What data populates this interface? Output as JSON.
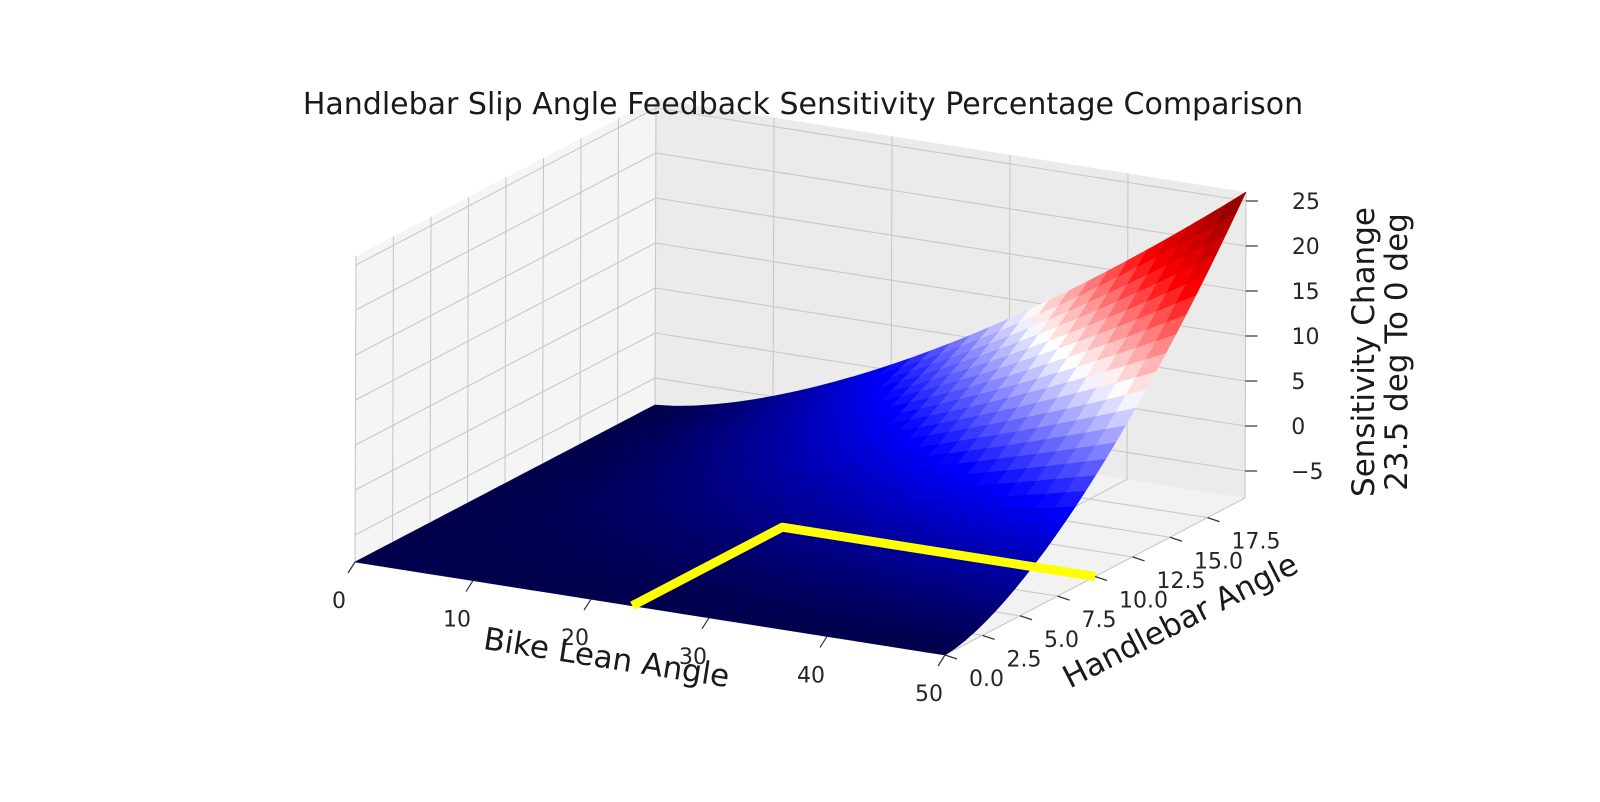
{
  "chart_data": {
    "type": "surface3d",
    "title": "Handlebar Slip Angle Feedback Sensitivity Percentage Comparison",
    "xlabel": "Bike Lean Angle",
    "ylabel": "Handlebar Angle",
    "zlabel_lines": [
      "Sensitivity Change",
      "23.5 deg To 0 deg"
    ],
    "xlim": [
      0,
      50
    ],
    "ylim": [
      0,
      20
    ],
    "zlim": [
      -8,
      26
    ],
    "x_ticks": [
      0,
      10,
      20,
      30,
      40,
      50
    ],
    "x_tick_labels": [
      "0",
      "10",
      "20",
      "30",
      "40",
      "50"
    ],
    "y_ticks": [
      0,
      2.5,
      5,
      7.5,
      10,
      12.5,
      15,
      17.5
    ],
    "y_tick_labels": [
      "0.0",
      "2.5",
      "5.0",
      "7.5",
      "10.0",
      "12.5",
      "15.0",
      "17.5"
    ],
    "z_ticks": [
      -5,
      0,
      5,
      10,
      15,
      20,
      25
    ],
    "z_tick_labels": [
      "−5",
      "0",
      "5",
      "10",
      "15",
      "20",
      "25"
    ],
    "colormap": "seismic",
    "colormap_stops": [
      "#00004c",
      "#0000ff",
      "#ffffff",
      "#ff0000",
      "#7f0000"
    ],
    "surface_range": {
      "x": [
        0,
        50
      ],
      "y": [
        0,
        20
      ],
      "z_min": -8,
      "z_max": 26
    },
    "surface_function": "z ≈ -8 + 34 · (x/50)^1.5 · (y/20)^1.6",
    "highlight_line": {
      "color": "#ffff00",
      "points": [
        [
          23.5,
          0
        ],
        [
          23.5,
          10
        ],
        [
          50,
          10
        ]
      ]
    },
    "grid": true,
    "pane_colors": {
      "floor": "#f2f2f2",
      "left_wall": "#f5f5f5",
      "back_wall": "#ebebeb"
    }
  }
}
